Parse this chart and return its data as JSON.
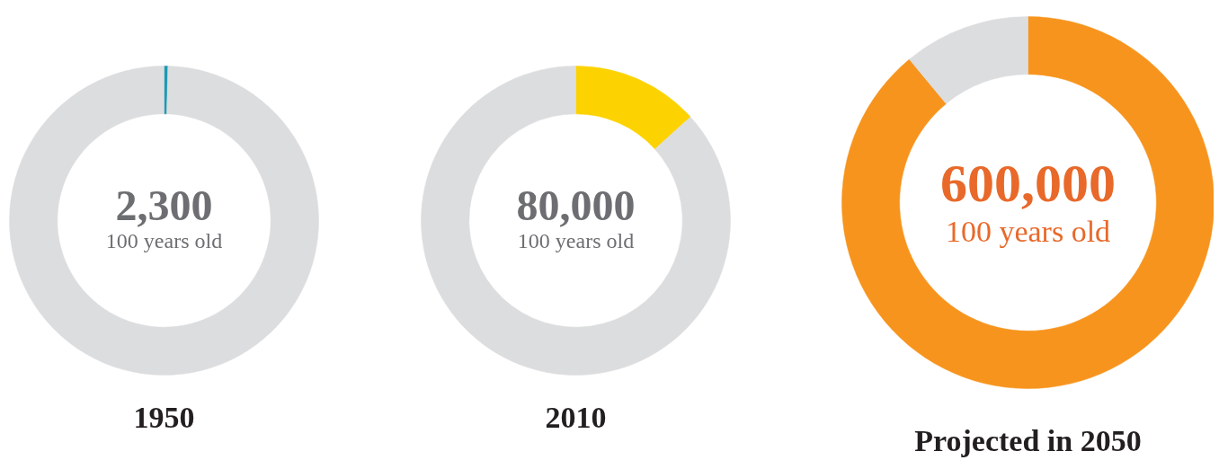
{
  "chart_data": [
    {
      "type": "donut",
      "title": "1950",
      "categories": [
        null,
        null
      ],
      "values": [
        0.4,
        99.6
      ],
      "colors": [
        "#1b9ab3",
        "#dcdddf"
      ],
      "annotations": [
        "2,300",
        "100 years old"
      ]
    },
    {
      "type": "donut",
      "title": "2010",
      "categories": [
        null,
        null
      ],
      "values": [
        13.3,
        86.7
      ],
      "colors": [
        "#fcd300",
        "#dcdddf"
      ],
      "annotations": [
        "80,000",
        "100 years old"
      ]
    },
    {
      "type": "donut",
      "title": "Projected in 2050",
      "categories": [
        null,
        null
      ],
      "values": [
        89,
        11
      ],
      "colors": [
        "#f7941d",
        "#dcdddf"
      ],
      "annotations": [
        "600,000",
        "100 years old"
      ]
    }
  ]
}
